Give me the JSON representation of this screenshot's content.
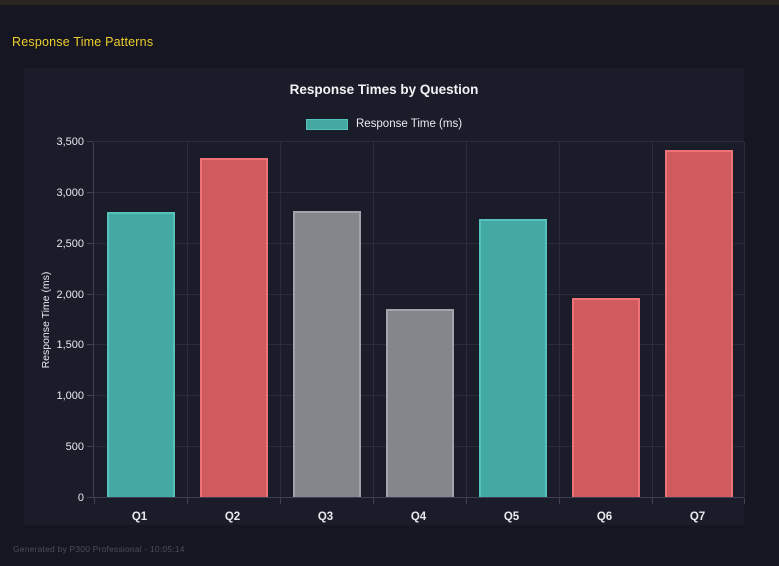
{
  "window": {
    "title": "Response Time Patterns",
    "footer": "Generated by P300 Professional - 10:05:14"
  },
  "chart_data": {
    "type": "bar",
    "title": "Response Times by Question",
    "legend": {
      "label": "Response Time (ms)",
      "position": "top",
      "swatch_color": "teal"
    },
    "categories": [
      "Q1",
      "Q2",
      "Q3",
      "Q4",
      "Q5",
      "Q6",
      "Q7"
    ],
    "values": [
      2800,
      3330,
      2810,
      1850,
      2730,
      1960,
      3410
    ],
    "bar_color_keys": [
      "teal",
      "red",
      "gray",
      "gray",
      "teal",
      "red",
      "red"
    ],
    "palette": {
      "teal": {
        "fill": "#44a9a3",
        "border": "#54c2ba"
      },
      "red": {
        "fill": "#d05b5f",
        "border": "#ee7276"
      },
      "gray": {
        "fill": "#85858c",
        "border": "#a3a3ab"
      }
    },
    "xlabel": "",
    "ylabel": "Response Time (ms)",
    "ylim": [
      0,
      3500
    ],
    "ytick_labels": [
      "0",
      "500",
      "1,000",
      "1,500",
      "2,000",
      "2,500",
      "3,000",
      "3,500"
    ],
    "grid": true,
    "legend_position": "top"
  },
  "theme": {
    "page_bg": "#151621",
    "panel_bg": "#1b1c2a",
    "top_strip": "#292622",
    "accent_title": "#edce2d",
    "text": "#e9e9ee",
    "muted_text": "#4c4d5c",
    "gridline": "#2b2c3b",
    "axis_line": "#3f4054"
  }
}
